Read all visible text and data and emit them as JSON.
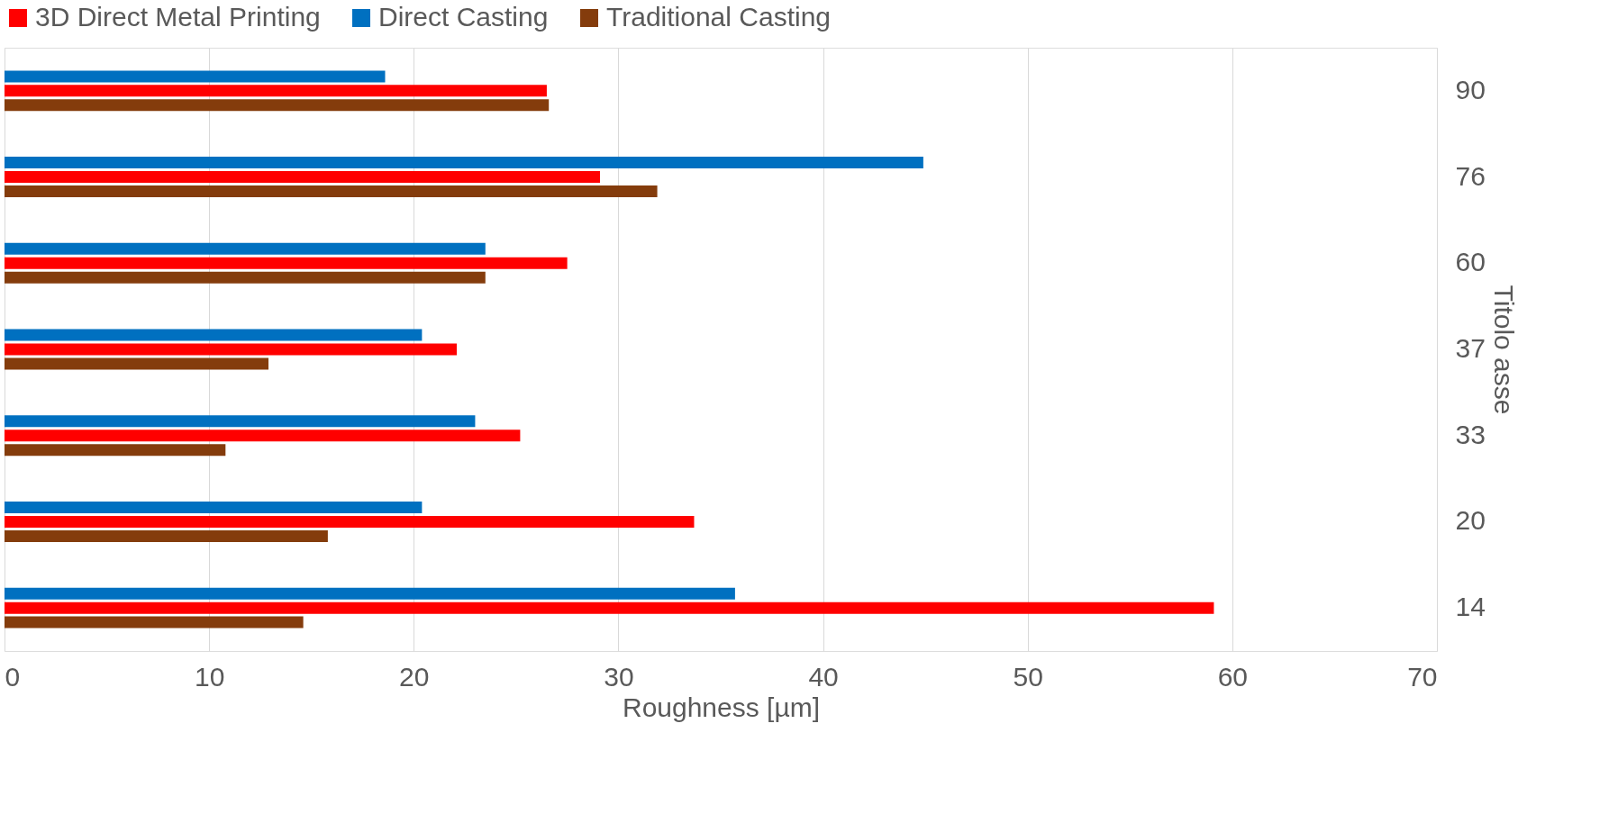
{
  "chart_data": {
    "type": "bar",
    "orientation": "horizontal",
    "xlabel": "Roughness [µm]",
    "ylabel": "Titolo asse",
    "categories": [
      "90",
      "76",
      "60",
      "37",
      "33",
      "20",
      "14"
    ],
    "series": [
      {
        "name": "3D Direct Metal Printing",
        "color": "#ff0000",
        "values": [
          26.5,
          29.1,
          27.5,
          22.1,
          25.2,
          33.7,
          59.1
        ]
      },
      {
        "name": "Direct Casting",
        "color": "#0070c0",
        "values": [
          18.6,
          44.9,
          23.5,
          20.4,
          23.0,
          20.4,
          35.7
        ]
      },
      {
        "name": "Traditional Casting",
        "color": "#843c0c",
        "values": [
          26.6,
          31.9,
          23.5,
          12.9,
          10.8,
          15.8,
          14.6
        ]
      }
    ],
    "xlim": [
      0,
      70
    ],
    "xticks": [
      0,
      10,
      20,
      30,
      40,
      50,
      60,
      70
    ],
    "grid": "x",
    "legend": "top"
  }
}
